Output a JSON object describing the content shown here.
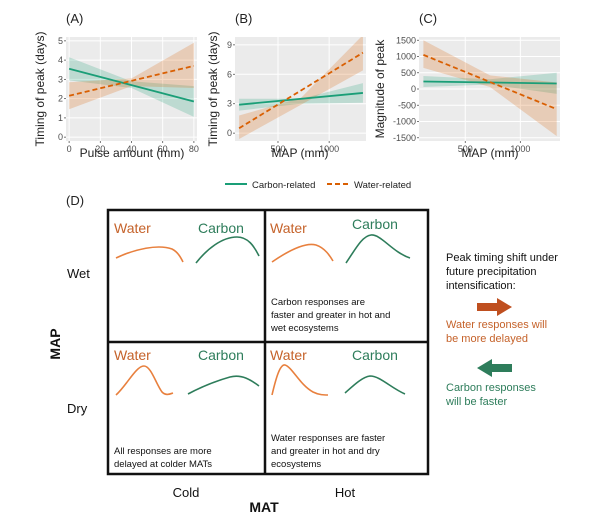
{
  "colors": {
    "carbon": "#1a9e77",
    "water": "#d95f02",
    "carbon_text": "#2e7d5b",
    "water_text": "#c5622a",
    "curve_water": "#e8803e",
    "curve_carbon": "#2e7d5b",
    "arrow_water": "#bf4f1f",
    "arrow_carbon": "#2e7d5b",
    "panel_bg": "#ebebeb",
    "grid": "#ffffff"
  },
  "chart_data": [
    {
      "type": "line",
      "panel_label": "(A)",
      "xlabel": "Pulse amount (mm)",
      "ylabel": "Timing of peak (days)",
      "xlim": [
        -2,
        82
      ],
      "ylim": [
        -0.2,
        5.2
      ],
      "xticks": [
        0,
        20,
        40,
        60,
        80
      ],
      "yticks": [
        0,
        1,
        2,
        3,
        4,
        5
      ],
      "grid": true,
      "series": [
        {
          "name": "Carbon-related",
          "key": "carbon",
          "dash": false,
          "x": [
            0,
            80
          ],
          "y": [
            3.55,
            1.85
          ],
          "lower": [
            2.95,
            1.05
          ],
          "upper": [
            4.15,
            2.65
          ],
          "mid_lower": 2.55,
          "mid_upper": 2.9
        },
        {
          "name": "Water-related",
          "key": "water",
          "dash": true,
          "x": [
            0,
            80
          ],
          "y": [
            2.15,
            3.7
          ],
          "lower": [
            1.45,
            2.55
          ],
          "upper": [
            2.85,
            4.9
          ],
          "mid_lower": 2.65,
          "mid_upper": 3.05
        }
      ]
    },
    {
      "type": "line",
      "panel_label": "(B)",
      "xlabel": "MAP (mm)",
      "ylabel": "Timing of peak (days)",
      "xlim": [
        80,
        1360
      ],
      "ylim": [
        -0.8,
        9.8
      ],
      "xticks": [
        500,
        1000
      ],
      "yticks": [
        0,
        3,
        6,
        9
      ],
      "grid": true,
      "series": [
        {
          "name": "Carbon-related",
          "key": "carbon",
          "dash": false,
          "x": [
            120,
            1330
          ],
          "y": [
            2.9,
            4.1
          ],
          "lower": [
            2.3,
            3.1
          ],
          "upper": [
            3.5,
            5.1
          ],
          "mid_lower": 3.0,
          "mid_upper": 3.5
        },
        {
          "name": "Water-related",
          "key": "water",
          "dash": true,
          "x": [
            120,
            1330
          ],
          "y": [
            0.5,
            8.2
          ],
          "lower": [
            -0.6,
            6.4
          ],
          "upper": [
            1.8,
            10.0
          ],
          "mid_lower": 2.9,
          "mid_upper": 3.6
        }
      ]
    },
    {
      "type": "line",
      "panel_label": "(C)",
      "xlabel": "MAP (mm)",
      "ylabel": "Magnitude of peak",
      "xlim": [
        80,
        1360
      ],
      "ylim": [
        -1600,
        1600
      ],
      "xticks": [
        500,
        1000
      ],
      "yticks": [
        -1500,
        -1000,
        -500,
        0,
        500,
        1000,
        1500
      ],
      "grid": true,
      "series": [
        {
          "name": "Carbon-related",
          "key": "carbon",
          "dash": false,
          "x": [
            120,
            1330
          ],
          "y": [
            230,
            170
          ],
          "lower": [
            60,
            -150
          ],
          "upper": [
            400,
            500
          ],
          "mid_lower": 140,
          "mid_upper": 300
        },
        {
          "name": "Water-related",
          "key": "water",
          "dash": true,
          "x": [
            120,
            1330
          ],
          "y": [
            1050,
            -620
          ],
          "lower": [
            650,
            -1450
          ],
          "upper": [
            1500,
            200
          ],
          "mid_lower": 60,
          "mid_upper": 420
        }
      ]
    }
  ],
  "legend": {
    "carbon_label": "Carbon-related",
    "water_label": "Water-related"
  },
  "panel_d": {
    "label": "(D)",
    "y_axis_title": "MAP",
    "x_axis_title": "MAT",
    "row_wet": "Wet",
    "row_dry": "Dry",
    "col_cold": "Cold",
    "col_hot": "Hot",
    "water_word": "Water",
    "carbon_word": "Carbon",
    "note_wet_hot_1": "Carbon responses are",
    "note_wet_hot_2": "faster and greater in hot and",
    "note_wet_hot_3": "wet ecosystems",
    "note_dry_cold_1": "All responses are more",
    "note_dry_cold_2": "delayed at colder MATs",
    "note_dry_hot_1": "Water responses are faster",
    "note_dry_hot_2": "and greater in hot and dry",
    "note_dry_hot_3": "ecosystems",
    "side_title_1": "Peak timing shift under",
    "side_title_2": "future precipitation",
    "side_title_3": "intensification:",
    "side_water_1": "Water responses will",
    "side_water_2": "be more delayed",
    "side_carbon_1": "Carbon responses",
    "side_carbon_2": "will be faster"
  }
}
